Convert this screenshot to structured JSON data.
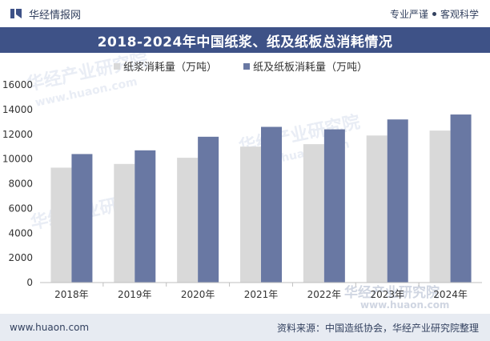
{
  "header": {
    "brand_name": "华经情报网",
    "tag_left": "专业严谨",
    "tag_right": "客观科学"
  },
  "footer": {
    "website": "www.huaon.com",
    "source": "资料来源：中国造纸协会，华经产业研究院整理"
  },
  "watermark": {
    "cn": "华经产业研究院",
    "url": "www.huaon.com"
  },
  "colors": {
    "pulp": "#d9d9d9",
    "board": "#6978a3",
    "title_band": "#3e5287",
    "text": "#33415f"
  },
  "chart_data": {
    "type": "bar",
    "title": "2018-2024年中国纸浆、纸及纸板总消耗情况",
    "categories": [
      "2018年",
      "2019年",
      "2020年",
      "2021年",
      "2022年",
      "2023年",
      "2024年"
    ],
    "series": [
      {
        "name": "纸浆消耗量（万吨）",
        "values": [
          9300,
          9600,
          10100,
          11000,
          11200,
          11900,
          12300
        ]
      },
      {
        "name": "纸及纸板消耗量（万吨）",
        "values": [
          10400,
          10700,
          11800,
          12600,
          12400,
          13200,
          13600
        ]
      }
    ],
    "y_ticks": [
      "0",
      "2000",
      "4000",
      "6000",
      "8000",
      "10000",
      "12000",
      "14000",
      "16000"
    ],
    "ylim": [
      0,
      16000
    ],
    "xlabel": "",
    "ylabel": ""
  }
}
